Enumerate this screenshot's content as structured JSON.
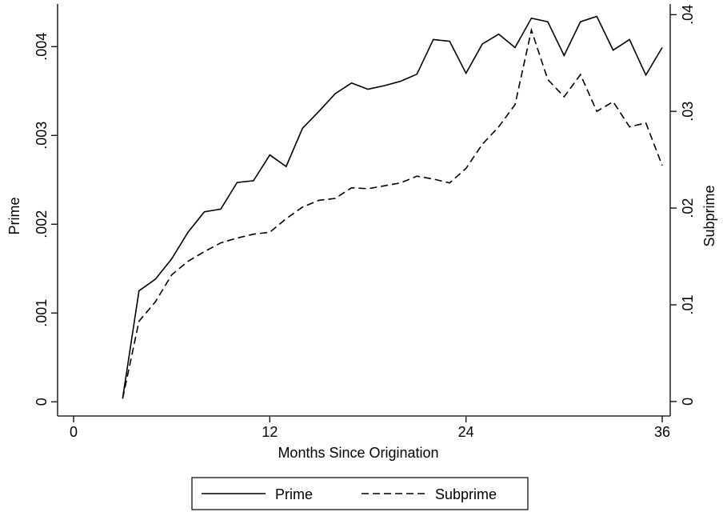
{
  "chart_data": {
    "type": "line",
    "x": [
      3,
      4,
      5,
      6,
      7,
      8,
      9,
      10,
      11,
      12,
      13,
      14,
      15,
      16,
      17,
      18,
      19,
      20,
      21,
      22,
      23,
      24,
      25,
      26,
      27,
      28,
      29,
      30,
      31,
      32,
      33,
      34,
      35,
      36
    ],
    "xlabel": "Months Since Origination",
    "ylabel": "Prime",
    "y2label": "Subprime",
    "xlim": [
      -0.98,
      36.49
    ],
    "xticks": [
      0,
      12,
      24,
      36
    ],
    "ylim": [
      -0.00016,
      0.00448
    ],
    "yticks": [
      0,
      {
        "value": 0.001,
        "label": ".001"
      },
      {
        "value": 0.002,
        "label": ".002"
      },
      {
        "value": 0.003,
        "label": ".003"
      },
      {
        "value": 0.004,
        "label": ".004"
      }
    ],
    "y2lim": [
      -0.0015,
      0.0411
    ],
    "y2ticks": [
      0,
      {
        "value": 0.01,
        "label": ".01"
      },
      {
        "value": 0.02,
        "label": ".02"
      },
      {
        "value": 0.03,
        "label": ".03"
      },
      {
        "value": 0.04,
        "label": ".04"
      }
    ],
    "series": [
      {
        "name": "Prime",
        "color": "#000000",
        "dashed": false,
        "values": [
          4e-05,
          0.00125,
          0.00138,
          0.00161,
          0.00191,
          0.00214,
          0.00217,
          0.00247,
          0.00249,
          0.00278,
          0.00265,
          0.00308,
          0.00327,
          0.00347,
          0.00359,
          0.00352,
          0.00356,
          0.00361,
          0.00369,
          0.00408,
          0.00406,
          0.0037,
          0.00403,
          0.00414,
          0.00399,
          0.00432,
          0.00428,
          0.0039,
          0.00428,
          0.00434,
          0.00396,
          0.00408,
          0.00368,
          0.00399
        ]
      },
      {
        "name": "Subprime",
        "color": "#000000",
        "dashed": true,
        "axis": "y2",
        "values": [
          0.0003,
          0.0083,
          0.0103,
          0.0131,
          0.0145,
          0.0155,
          0.0164,
          0.0169,
          0.0173,
          0.0175,
          0.0189,
          0.0201,
          0.0208,
          0.021,
          0.0221,
          0.022,
          0.0223,
          0.0226,
          0.0233,
          0.023,
          0.0226,
          0.0241,
          0.0266,
          0.0284,
          0.0307,
          0.0384,
          0.0333,
          0.0315,
          0.0338,
          0.03,
          0.031,
          0.0284,
          0.0288,
          0.0244
        ]
      }
    ]
  }
}
